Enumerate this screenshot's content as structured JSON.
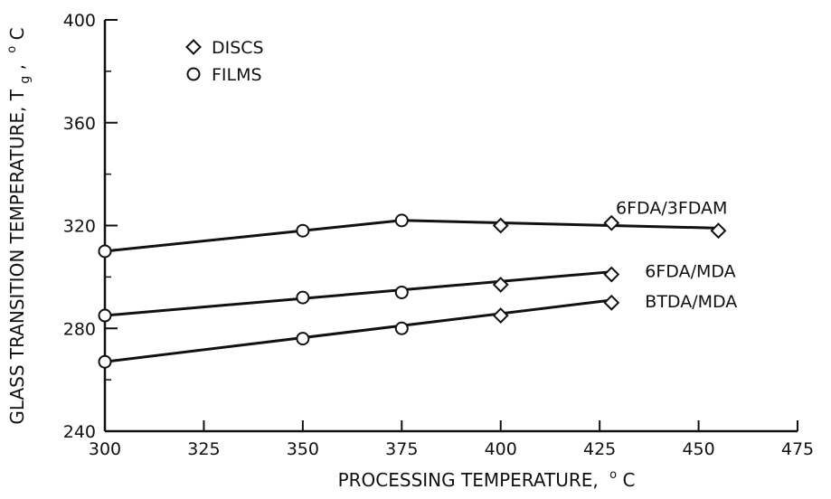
{
  "chart_data": {
    "type": "line",
    "xlabel": "PROCESSING TEMPERATURE,",
    "xlabel_unit": "C",
    "ylabel": "GLASS TRANSITION TEMPERATURE, T",
    "ylabel_sub": "g",
    "ylabel_unit": "C",
    "degree_mark": "o",
    "xlim": [
      300,
      475
    ],
    "ylim": [
      240,
      400
    ],
    "xticks": [
      300,
      325,
      350,
      375,
      400,
      425,
      450,
      475
    ],
    "yticks": [
      240,
      280,
      320,
      360,
      400
    ],
    "grid": false,
    "legend_position": "top-left",
    "legend": [
      {
        "marker": "diamond",
        "label": "DISCS"
      },
      {
        "marker": "circle",
        "label": "FILMS"
      }
    ],
    "series": [
      {
        "name": "6FDA/3FDAM",
        "line": [
          [
            300,
            310
          ],
          [
            375,
            322
          ],
          [
            455,
            319
          ]
        ],
        "points": [
          {
            "x": 300,
            "y": 310,
            "marker": "circle"
          },
          {
            "x": 350,
            "y": 318,
            "marker": "circle"
          },
          {
            "x": 375,
            "y": 322,
            "marker": "circle"
          },
          {
            "x": 400,
            "y": 320,
            "marker": "diamond"
          },
          {
            "x": 428,
            "y": 321,
            "marker": "diamond"
          },
          {
            "x": 455,
            "y": 318,
            "marker": "diamond"
          }
        ]
      },
      {
        "name": "6FDA/MDA",
        "line": [
          [
            300,
            285
          ],
          [
            428,
            302
          ]
        ],
        "points": [
          {
            "x": 300,
            "y": 285,
            "marker": "circle"
          },
          {
            "x": 350,
            "y": 292,
            "marker": "circle"
          },
          {
            "x": 375,
            "y": 294,
            "marker": "circle"
          },
          {
            "x": 400,
            "y": 297,
            "marker": "diamond"
          },
          {
            "x": 428,
            "y": 301,
            "marker": "diamond"
          }
        ]
      },
      {
        "name": "BTDA/MDA",
        "line": [
          [
            300,
            267
          ],
          [
            428,
            291
          ]
        ],
        "points": [
          {
            "x": 300,
            "y": 267,
            "marker": "circle"
          },
          {
            "x": 350,
            "y": 276,
            "marker": "circle"
          },
          {
            "x": 375,
            "y": 280,
            "marker": "circle"
          },
          {
            "x": 400,
            "y": 285,
            "marker": "diamond"
          },
          {
            "x": 428,
            "y": 290,
            "marker": "diamond"
          }
        ]
      }
    ]
  }
}
